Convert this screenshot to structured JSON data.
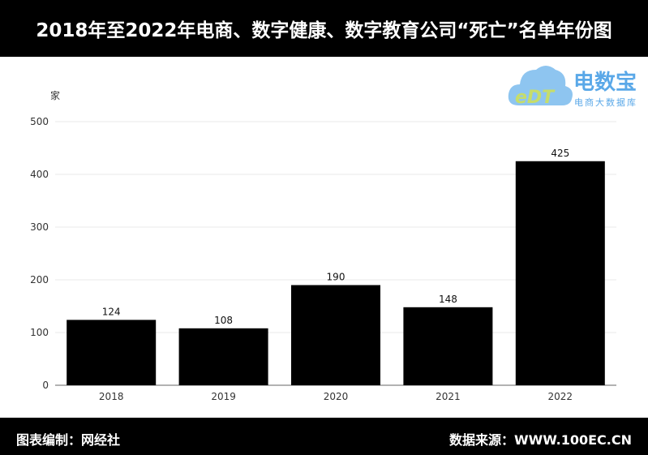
{
  "title": "2018年至2022年电商、数字健康、数字教育公司“死亡”名单年份图",
  "footer": {
    "left": "图表编制：网经社",
    "right": "数据来源：WWW.100EC.CN"
  },
  "logo": {
    "main": "电数宝",
    "sub": "电商大数据库",
    "mark": "eDT"
  },
  "colors": {
    "bar": "#000000",
    "logo": "#5aa8e8"
  },
  "chart_data": {
    "type": "bar",
    "title": "2018年至2022年电商、数字健康、数字教育公司“死亡”名单年份图",
    "categories": [
      "2018",
      "2019",
      "2020",
      "2021",
      "2022"
    ],
    "values": [
      124,
      108,
      190,
      148,
      425
    ],
    "ylabel": "家",
    "xlabel": "",
    "ylim": [
      0,
      500
    ],
    "yticks": [
      0,
      100,
      200,
      300,
      400,
      500
    ],
    "grid": true
  }
}
